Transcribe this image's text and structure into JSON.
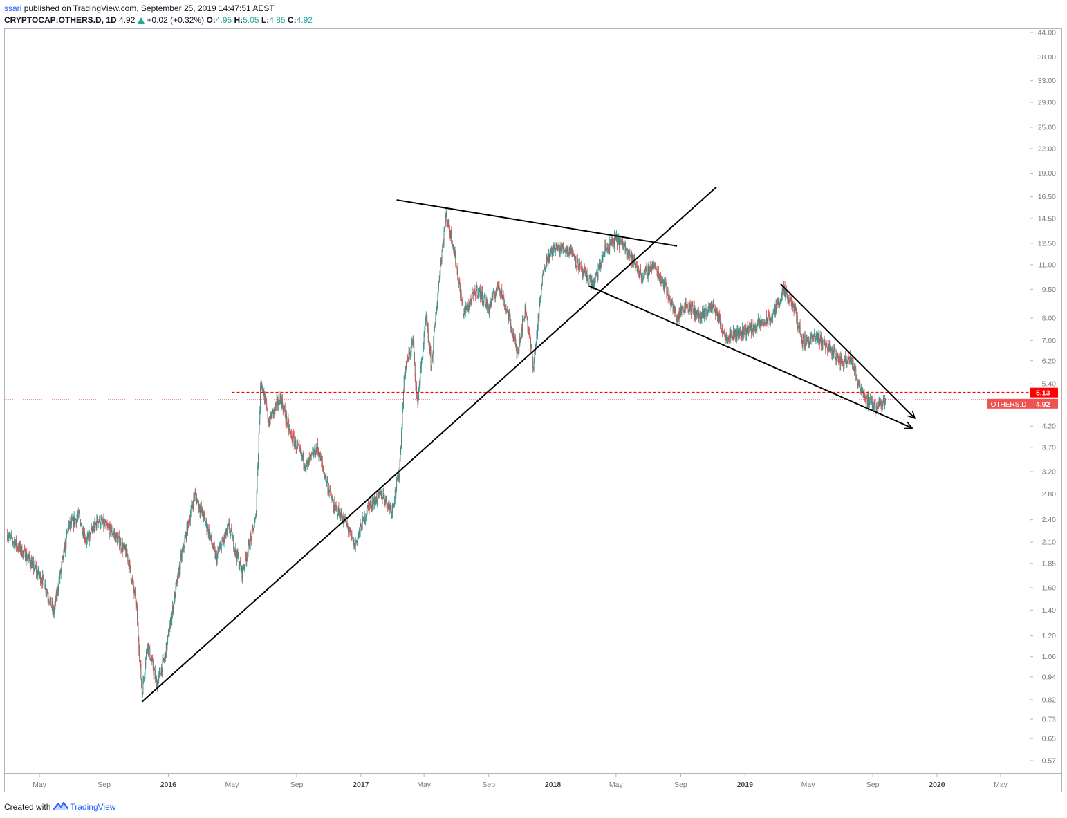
{
  "header": {
    "publisher": "ssari",
    "published_text": "published on TradingView.com, September 25, 2019 14:47:51 AEST",
    "symbol": "CRYPTOCAP:OTHERS.D, 1D",
    "last": "4.92",
    "change": "+0.02 (+0.32%)",
    "o_label": "O:",
    "o_value": "4.95",
    "h_label": "H:",
    "h_value": "5.05",
    "l_label": "L:",
    "l_value": "4.85",
    "c_label": "C:",
    "c_value": "4.92"
  },
  "footer": {
    "created_with": "Created with",
    "brand": "TradingView"
  },
  "colors": {
    "up": "#26a69a",
    "down": "#ef5350",
    "candle_body": "#6b7b7a",
    "dashed": "#ff0000",
    "drawing": "#000000",
    "axis_text": "#787b86"
  },
  "chart_data": {
    "type": "candlestick",
    "scale": "log",
    "ylim": [
      0.53,
      45
    ],
    "y_ticks": [
      "44.00",
      "38.00",
      "33.00",
      "29.00",
      "25.00",
      "22.00",
      "19.00",
      "16.50",
      "14.50",
      "12.50",
      "11.00",
      "9.50",
      "8.00",
      "7.00",
      "6.20",
      "5.40",
      "4.20",
      "3.70",
      "3.20",
      "2.80",
      "2.40",
      "2.10",
      "1.85",
      "1.60",
      "1.40",
      "1.20",
      "1.06",
      "0.94",
      "0.82",
      "0.73",
      "0.65",
      "0.57"
    ],
    "x_ticks": [
      {
        "label": "May",
        "date": "2015-05-01",
        "bold": false
      },
      {
        "label": "Sep",
        "date": "2015-09-01",
        "bold": false
      },
      {
        "label": "2016",
        "date": "2016-01-01",
        "bold": true
      },
      {
        "label": "May",
        "date": "2016-05-01",
        "bold": false
      },
      {
        "label": "Sep",
        "date": "2016-09-01",
        "bold": false
      },
      {
        "label": "2017",
        "date": "2017-01-01",
        "bold": true
      },
      {
        "label": "May",
        "date": "2017-05-01",
        "bold": false
      },
      {
        "label": "Sep",
        "date": "2017-09-01",
        "bold": false
      },
      {
        "label": "2018",
        "date": "2018-01-01",
        "bold": true
      },
      {
        "label": "May",
        "date": "2018-05-01",
        "bold": false
      },
      {
        "label": "Sep",
        "date": "2018-09-01",
        "bold": false
      },
      {
        "label": "2019",
        "date": "2019-01-01",
        "bold": true
      },
      {
        "label": "May",
        "date": "2019-05-01",
        "bold": false
      },
      {
        "label": "Sep",
        "date": "2019-09-01",
        "bold": false
      },
      {
        "label": "2020",
        "date": "2020-01-01",
        "bold": true
      },
      {
        "label": "May",
        "date": "2020-05-01",
        "bold": false
      }
    ],
    "price_path": [
      {
        "date": "2015-03-01",
        "value": 2.2
      },
      {
        "date": "2015-04-10",
        "value": 1.9
      },
      {
        "date": "2015-05-10",
        "value": 1.65
      },
      {
        "date": "2015-05-28",
        "value": 1.38
      },
      {
        "date": "2015-06-25",
        "value": 2.3
      },
      {
        "date": "2015-07-15",
        "value": 2.45
      },
      {
        "date": "2015-07-30",
        "value": 2.1
      },
      {
        "date": "2015-08-20",
        "value": 2.4
      },
      {
        "date": "2015-09-20",
        "value": 2.2
      },
      {
        "date": "2015-10-15",
        "value": 1.95
      },
      {
        "date": "2015-11-01",
        "value": 1.45
      },
      {
        "date": "2015-11-12",
        "value": 0.85
      },
      {
        "date": "2015-11-22",
        "value": 1.15
      },
      {
        "date": "2015-12-10",
        "value": 0.9
      },
      {
        "date": "2015-12-25",
        "value": 1.05
      },
      {
        "date": "2016-01-25",
        "value": 1.9
      },
      {
        "date": "2016-02-20",
        "value": 2.8
      },
      {
        "date": "2016-03-15",
        "value": 2.3
      },
      {
        "date": "2016-04-01",
        "value": 1.9
      },
      {
        "date": "2016-04-25",
        "value": 2.3
      },
      {
        "date": "2016-05-20",
        "value": 1.75
      },
      {
        "date": "2016-06-15",
        "value": 2.4
      },
      {
        "date": "2016-06-25",
        "value": 5.6
      },
      {
        "date": "2016-07-10",
        "value": 4.3
      },
      {
        "date": "2016-08-01",
        "value": 5.0
      },
      {
        "date": "2016-08-20",
        "value": 4.0
      },
      {
        "date": "2016-09-20",
        "value": 3.3
      },
      {
        "date": "2016-10-10",
        "value": 3.7
      },
      {
        "date": "2016-11-10",
        "value": 2.6
      },
      {
        "date": "2016-12-01",
        "value": 2.4
      },
      {
        "date": "2016-12-20",
        "value": 2.05
      },
      {
        "date": "2017-01-15",
        "value": 2.6
      },
      {
        "date": "2017-02-10",
        "value": 2.8
      },
      {
        "date": "2017-03-01",
        "value": 2.55
      },
      {
        "date": "2017-03-15",
        "value": 3.2
      },
      {
        "date": "2017-03-25",
        "value": 5.8
      },
      {
        "date": "2017-04-10",
        "value": 7.0
      },
      {
        "date": "2017-04-18",
        "value": 4.8
      },
      {
        "date": "2017-05-05",
        "value": 8.0
      },
      {
        "date": "2017-05-15",
        "value": 6.0
      },
      {
        "date": "2017-06-01",
        "value": 11.0
      },
      {
        "date": "2017-06-12",
        "value": 14.8
      },
      {
        "date": "2017-06-25",
        "value": 12.5
      },
      {
        "date": "2017-07-15",
        "value": 8.2
      },
      {
        "date": "2017-08-10",
        "value": 9.5
      },
      {
        "date": "2017-09-01",
        "value": 8.5
      },
      {
        "date": "2017-09-20",
        "value": 9.8
      },
      {
        "date": "2017-10-10",
        "value": 8.0
      },
      {
        "date": "2017-10-25",
        "value": 6.5
      },
      {
        "date": "2017-11-10",
        "value": 8.5
      },
      {
        "date": "2017-11-25",
        "value": 6.0
      },
      {
        "date": "2017-12-15",
        "value": 11.0
      },
      {
        "date": "2018-01-05",
        "value": 12.2
      },
      {
        "date": "2018-02-05",
        "value": 12.0
      },
      {
        "date": "2018-02-25",
        "value": 10.5
      },
      {
        "date": "2018-03-20",
        "value": 9.8
      },
      {
        "date": "2018-04-10",
        "value": 12.0
      },
      {
        "date": "2018-05-01",
        "value": 12.8
      },
      {
        "date": "2018-05-20",
        "value": 12.2
      },
      {
        "date": "2018-06-20",
        "value": 10.2
      },
      {
        "date": "2018-07-10",
        "value": 11.0
      },
      {
        "date": "2018-08-01",
        "value": 9.8
      },
      {
        "date": "2018-08-25",
        "value": 8.0
      },
      {
        "date": "2018-09-10",
        "value": 8.7
      },
      {
        "date": "2018-10-10",
        "value": 8.0
      },
      {
        "date": "2018-11-01",
        "value": 8.7
      },
      {
        "date": "2018-11-25",
        "value": 7.2
      },
      {
        "date": "2018-12-20",
        "value": 7.3
      },
      {
        "date": "2019-01-20",
        "value": 7.6
      },
      {
        "date": "2019-02-20",
        "value": 8.0
      },
      {
        "date": "2019-03-15",
        "value": 9.4
      },
      {
        "date": "2019-04-05",
        "value": 8.5
      },
      {
        "date": "2019-04-20",
        "value": 7.0
      },
      {
        "date": "2019-05-20",
        "value": 7.1
      },
      {
        "date": "2019-06-15",
        "value": 6.6
      },
      {
        "date": "2019-07-05",
        "value": 6.1
      },
      {
        "date": "2019-07-20",
        "value": 6.4
      },
      {
        "date": "2019-08-01",
        "value": 5.6
      },
      {
        "date": "2019-08-20",
        "value": 4.9
      },
      {
        "date": "2019-09-05",
        "value": 4.7
      },
      {
        "date": "2019-09-25",
        "value": 4.92
      }
    ],
    "trend_lines": [
      {
        "name": "support-trendline",
        "from": {
          "date": "2015-11-12",
          "value": 0.81
        },
        "to": {
          "date": "2018-11-08",
          "value": 17.5
        }
      },
      {
        "name": "resistance-trendline",
        "from": {
          "date": "2017-03-10",
          "value": 16.2
        },
        "to": {
          "date": "2018-08-25",
          "value": 12.3
        }
      },
      {
        "name": "wedge-upper-line",
        "from": {
          "date": "2019-03-10",
          "value": 9.8
        },
        "to": {
          "date": "2019-11-20",
          "value": 4.4
        },
        "arrow": true
      },
      {
        "name": "wedge-lower-line",
        "from": {
          "date": "2018-03-10",
          "value": 9.7
        },
        "to": {
          "date": "2019-11-15",
          "value": 4.15
        },
        "arrow": true
      }
    ],
    "horizontal_levels": [
      {
        "name": "resistance-level",
        "value": 5.13,
        "label": "5.13",
        "start_date": "2016-05-01",
        "style": "dashed"
      },
      {
        "name": "last-price-level",
        "value": 4.92,
        "label": "4.92",
        "symbol_label": "OTHERS.D",
        "style": "dotted"
      }
    ]
  }
}
